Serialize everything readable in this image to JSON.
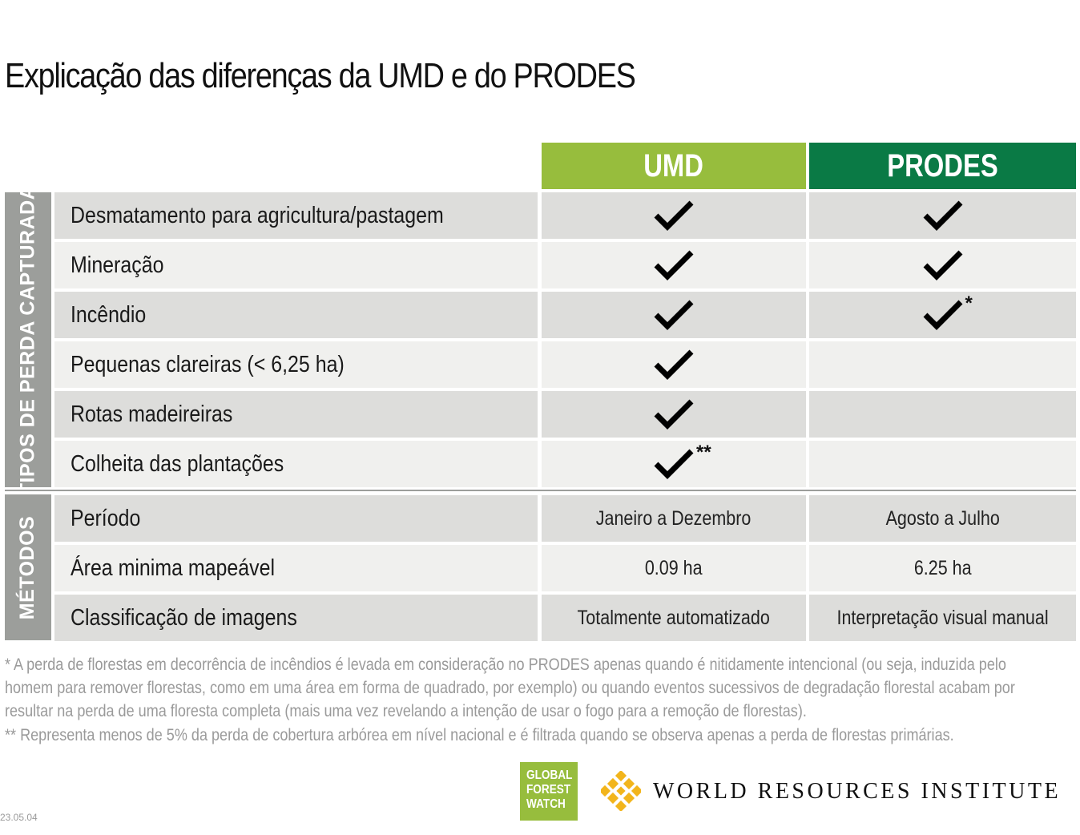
{
  "title": "Explicação das diferenças da UMD e do PRODES",
  "columns": {
    "umd": "UMD",
    "prodes": "PRODES"
  },
  "colors": {
    "umd": "#97bd3d",
    "prodes": "#0a7a45",
    "side": "#9c9e9b",
    "check": "#000000"
  },
  "sections": {
    "tipos": "TIPOS DE PERDA CAPTURADA",
    "metodos": "MÉTODOS"
  },
  "loss_types": [
    {
      "label": "Desmatamento para agricultura/pastagem",
      "umd": true,
      "prodes": true
    },
    {
      "label": "Mineração",
      "umd": true,
      "prodes": true
    },
    {
      "label": "Incêndio",
      "umd": true,
      "prodes": true,
      "prodes_mark": "*"
    },
    {
      "label": "Pequenas clareiras (< 6,25 ha)",
      "umd": true,
      "prodes": false
    },
    {
      "label": "Rotas madeireiras",
      "umd": true,
      "prodes": false
    },
    {
      "label": "Colheita das plantações",
      "umd": true,
      "umd_mark": "**",
      "prodes": false
    }
  ],
  "methods": [
    {
      "label": "Período",
      "umd": "Janeiro a Dezembro",
      "prodes": "Agosto a Julho"
    },
    {
      "label": "Área minima mapeável",
      "umd": "0.09 ha",
      "prodes": "6.25 ha"
    },
    {
      "label": "Classificação de imagens",
      "umd": "Totalmente automatizado",
      "prodes": "Interpretação visual manual"
    }
  ],
  "footnotes": {
    "line1": "* A perda de florestas em decorrência de incêndios é levada em consideração no PRODES apenas quando é nitidamente intencional (ou seja, induzida pelo",
    "line2": "homem para remover florestas, como em uma área em forma de quadrado, por exemplo) ou quando eventos sucessivos de degradação florestal acabam por",
    "line3": "resultar na perda de uma floresta completa (mais uma vez revelando a intenção de usar o fogo para a remoção de florestas).",
    "line4": "** Representa menos de 5% da perda de cobertura arbórea em nível nacional e é filtrada quando se observa apenas a perda de florestas primárias."
  },
  "logos": {
    "gfw": [
      "GLOBAL",
      "FOREST",
      "WATCH"
    ],
    "wri": "WORLD RESOURCES INSTITUTE"
  },
  "date_stamp": "23.05.04",
  "icons": {
    "check": "check-icon",
    "wri": "wri-logo-icon"
  }
}
